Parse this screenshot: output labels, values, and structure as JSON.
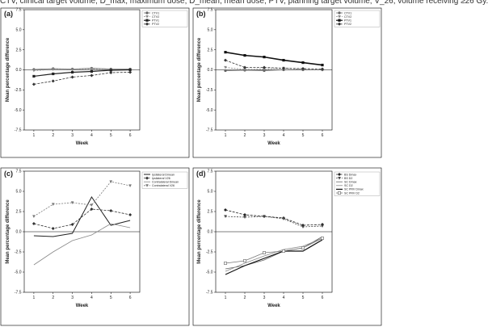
{
  "caption": "CTV, clinical target volume; D_max, maximum dose; D_mean, mean dose; PTV, planning target volume; V_26, volume receiving ≥26 Gy.",
  "chart_data": [
    {
      "panel": "(a)",
      "type": "line",
      "xlabel": "Week",
      "ylabel": "Mean percentage difference",
      "x": [
        1,
        2,
        3,
        4,
        5,
        6
      ],
      "xlim": [
        0.5,
        6.5
      ],
      "ylim": [
        -7.5,
        7.5
      ],
      "yticks": [
        -7.5,
        -5.0,
        -2.5,
        0.0,
        2.5,
        5.0,
        7.5
      ],
      "baseline": 0,
      "legend_position": "top-right",
      "series": [
        {
          "name": "CTV1",
          "color": "#666666",
          "width": 0.8,
          "dash": "",
          "marker": "circle",
          "values": [
            0.05,
            0.15,
            0.1,
            0.2,
            0.1,
            0.1
          ]
        },
        {
          "name": "CTV2",
          "color": "#888888",
          "width": 0.8,
          "dash": "2,1.5",
          "marker": "triangle-down",
          "values": [
            -0.1,
            0.05,
            0.0,
            0.1,
            0.0,
            0.0
          ]
        },
        {
          "name": "PTV1",
          "color": "#222222",
          "width": 1.2,
          "dash": "",
          "marker": "square",
          "values": [
            -0.8,
            -0.5,
            -0.3,
            -0.2,
            -0.05,
            0.0
          ]
        },
        {
          "name": "PTV2",
          "color": "#333333",
          "width": 0.8,
          "dash": "3,1.5",
          "marker": "diamond",
          "values": [
            -1.8,
            -1.4,
            -0.9,
            -0.7,
            -0.35,
            -0.3
          ]
        }
      ]
    },
    {
      "panel": "(b)",
      "type": "line",
      "xlabel": "Week",
      "ylabel": "Mean percentage difference",
      "x": [
        1,
        2,
        3,
        4,
        5,
        6
      ],
      "xlim": [
        0.5,
        6.5
      ],
      "ylim": [
        -7.5,
        7.5
      ],
      "yticks": [
        -7.5,
        -5.0,
        -2.5,
        0.0,
        2.5,
        5.0,
        7.5
      ],
      "baseline": 0,
      "legend_position": "top-right",
      "series": [
        {
          "name": "CTV1",
          "color": "#666666",
          "width": 0.8,
          "dash": "",
          "marker": "circle",
          "values": [
            -0.1,
            -0.05,
            -0.1,
            0.0,
            0.0,
            0.0
          ]
        },
        {
          "name": "CTV2",
          "color": "#888888",
          "width": 0.8,
          "dash": "2,1.5",
          "marker": "triangle-down",
          "values": [
            0.3,
            0.05,
            0.1,
            0.2,
            0.05,
            0.0
          ]
        },
        {
          "name": "PTV1",
          "color": "#111111",
          "width": 1.6,
          "dash": "",
          "marker": "square",
          "values": [
            2.2,
            1.8,
            1.6,
            1.2,
            0.9,
            0.6
          ]
        },
        {
          "name": "PTV2",
          "color": "#333333",
          "width": 0.8,
          "dash": "3,1.5",
          "marker": "diamond",
          "values": [
            1.2,
            0.3,
            0.3,
            0.2,
            0.15,
            0.1
          ]
        }
      ]
    },
    {
      "panel": "(c)",
      "type": "line",
      "xlabel": "Week",
      "ylabel": "Mean percentage difference",
      "x": [
        1,
        2,
        3,
        4,
        5,
        6
      ],
      "xlim": [
        0.5,
        6.5
      ],
      "ylim": [
        -7.5,
        7.5
      ],
      "yticks": [
        -7.5,
        -5.0,
        -2.5,
        0.0,
        2.5,
        5.0,
        7.5
      ],
      "baseline": 0,
      "legend_position": "top-right",
      "series": [
        {
          "name": "Ipsilateral Dmean",
          "color": "#222222",
          "width": 1.0,
          "dash": "",
          "marker": "none",
          "values": [
            -0.5,
            -0.6,
            -0.2,
            4.3,
            0.8,
            1.4
          ]
        },
        {
          "name": "Ipsilateral V26",
          "color": "#333333",
          "width": 0.8,
          "dash": "3,1.5",
          "marker": "diamond",
          "values": [
            1.0,
            0.4,
            0.9,
            2.8,
            2.6,
            2.1
          ]
        },
        {
          "name": "Contralateral Dmean",
          "color": "#888888",
          "width": 0.8,
          "dash": "",
          "marker": "none",
          "values": [
            -4.1,
            -2.5,
            -1.1,
            -0.4,
            1.0,
            0.5
          ]
        },
        {
          "name": "Contralateral V26",
          "color": "#777777",
          "width": 0.8,
          "dash": "2,1.5",
          "marker": "triangle-down",
          "values": [
            1.9,
            3.4,
            3.6,
            3.3,
            6.2,
            5.7
          ]
        }
      ]
    },
    {
      "panel": "(d)",
      "type": "line",
      "xlabel": "Week",
      "ylabel": "Mean percentage difference",
      "x": [
        1,
        2,
        3,
        4,
        5,
        6
      ],
      "xlim": [
        0.5,
        6.5
      ],
      "ylim": [
        -7.5,
        7.5
      ],
      "yticks": [
        -7.5,
        -5.0,
        -2.5,
        0.0,
        2.5,
        5.0,
        7.5
      ],
      "baseline": 0,
      "legend_position": "top-right",
      "series": [
        {
          "name": "BS Dmax",
          "color": "#222222",
          "width": 0.8,
          "dash": "3,1.5",
          "marker": "diamond",
          "values": [
            2.7,
            2.1,
            1.9,
            1.7,
            0.8,
            0.9
          ]
        },
        {
          "name": "BS D2",
          "color": "#444444",
          "width": 0.8,
          "dash": "2,1.5",
          "marker": "triangle-down",
          "values": [
            1.9,
            1.8,
            1.9,
            1.6,
            0.6,
            0.7
          ]
        },
        {
          "name": "SC Dmax",
          "color": "#666666",
          "width": 0.8,
          "dash": "",
          "marker": "none",
          "values": [
            -4.6,
            -4.2,
            -3.5,
            -2.4,
            -2.0,
            -0.6
          ]
        },
        {
          "name": "SC D2",
          "color": "#888888",
          "width": 0.8,
          "dash": "",
          "marker": "none",
          "values": [
            -4.9,
            -3.9,
            -3.0,
            -2.2,
            -1.8,
            -0.8
          ]
        },
        {
          "name": "SC PRV Dmax",
          "color": "#111111",
          "width": 1.2,
          "dash": "",
          "marker": "none",
          "values": [
            -5.3,
            -4.2,
            -3.3,
            -2.4,
            -2.4,
            -1.0
          ]
        },
        {
          "name": "SC PRV D2",
          "color": "#777777",
          "width": 0.8,
          "dash": "",
          "marker": "square-open",
          "values": [
            -3.9,
            -3.6,
            -2.6,
            -2.4,
            -2.0,
            -0.8
          ]
        }
      ]
    }
  ]
}
